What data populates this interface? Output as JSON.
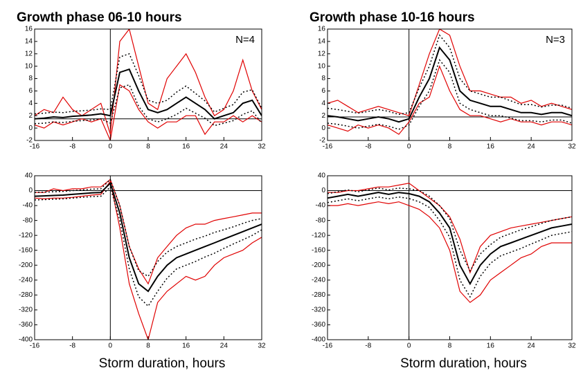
{
  "chart_data": [
    {
      "type": "line",
      "title": "Growth phase 06-10 hours",
      "annotation": "N=4",
      "x": [
        -16,
        -14,
        -12,
        -10,
        -8,
        -6,
        -4,
        -2,
        0,
        2,
        4,
        6,
        8,
        10,
        12,
        14,
        16,
        18,
        20,
        22,
        24,
        26,
        28,
        30,
        32
      ],
      "xlim": [
        -16,
        32
      ],
      "xticks": [
        -16,
        -8,
        0,
        8,
        16,
        24,
        32
      ],
      "ylim": [
        -2,
        16
      ],
      "yticks": [
        -2,
        0,
        2,
        4,
        6,
        8,
        10,
        12,
        14,
        16
      ],
      "hline": 1.5,
      "vline": 0,
      "series": [
        {
          "color": "#e00000",
          "style": "solid",
          "values": [
            2,
            3,
            2.5,
            5,
            3,
            2,
            3,
            4,
            -1,
            14,
            16,
            10,
            4,
            3,
            8,
            10,
            12,
            9,
            5,
            2,
            3,
            6,
            11,
            6,
            3
          ]
        },
        {
          "color": "#e00000",
          "style": "solid",
          "values": [
            0.5,
            0,
            1,
            0.5,
            1,
            1.5,
            1,
            1.5,
            -2,
            7,
            6,
            3,
            1,
            0,
            1,
            1,
            2,
            2,
            -1,
            1,
            1,
            2,
            1,
            2,
            1
          ]
        },
        {
          "color": "#000000",
          "style": "dotted",
          "values": [
            2.3,
            2.4,
            2.6,
            2.5,
            2.7,
            2.8,
            2.9,
            3.1,
            3.0,
            11.5,
            12.0,
            8.5,
            4.5,
            4.0,
            4.5,
            5.8,
            6.8,
            5.6,
            4.4,
            2.6,
            3.2,
            3.8,
            5.8,
            6.2,
            3.2
          ]
        },
        {
          "color": "#000000",
          "style": "dotted",
          "values": [
            0.7,
            0.8,
            1.0,
            0.9,
            1.1,
            1.2,
            1.3,
            1.5,
            0.8,
            6.5,
            7.0,
            3.5,
            1.5,
            1.0,
            1.5,
            2.2,
            3.2,
            2.4,
            1.6,
            0.4,
            0.8,
            1.2,
            2.2,
            2.8,
            0.8
          ]
        },
        {
          "color": "#000000",
          "style": "solid",
          "values": [
            1.5,
            1.6,
            1.8,
            1.7,
            1.9,
            2.0,
            2.1,
            2.3,
            2.0,
            9.0,
            9.5,
            6.0,
            3.0,
            2.5,
            3.0,
            4.0,
            5.0,
            4.0,
            3.0,
            1.5,
            2.0,
            2.5,
            4.0,
            4.5,
            2.0
          ]
        }
      ]
    },
    {
      "type": "line",
      "title": "Growth phase  10-16 hours",
      "annotation": "N=3",
      "x": [
        -16,
        -14,
        -12,
        -10,
        -8,
        -6,
        -4,
        -2,
        0,
        2,
        4,
        6,
        8,
        10,
        12,
        14,
        16,
        18,
        20,
        22,
        24,
        26,
        28,
        30,
        32
      ],
      "xlim": [
        -16,
        32
      ],
      "xticks": [
        -16,
        -8,
        0,
        8,
        16,
        24,
        32
      ],
      "ylim": [
        -2,
        16
      ],
      "yticks": [
        -2,
        0,
        2,
        4,
        6,
        8,
        10,
        12,
        14,
        16
      ],
      "hline": 1.8,
      "vline": 0,
      "series": [
        {
          "color": "#e00000",
          "style": "solid",
          "values": [
            4.0,
            4.5,
            3.5,
            2.5,
            3.0,
            3.5,
            3.0,
            2.5,
            2.0,
            7.0,
            12.0,
            16.0,
            15.0,
            10.0,
            6.0,
            6.0,
            5.5,
            5.0,
            5.0,
            4.0,
            4.5,
            3.5,
            4.0,
            3.5,
            3.0
          ]
        },
        {
          "color": "#e00000",
          "style": "solid",
          "values": [
            0.5,
            0.0,
            -0.5,
            0.5,
            0.0,
            0.5,
            0.0,
            -1.0,
            1.0,
            4.0,
            5.0,
            10.0,
            6.0,
            3.0,
            2.0,
            2.0,
            1.5,
            1.0,
            1.5,
            1.0,
            1.0,
            0.5,
            1.0,
            1.0,
            0.5
          ]
        },
        {
          "color": "#000000",
          "style": "dotted",
          "values": [
            3.2,
            3.0,
            2.7,
            2.4,
            2.7,
            3.0,
            2.7,
            2.2,
            2.5,
            6.5,
            10.0,
            15.0,
            13.0,
            8.0,
            6.0,
            5.5,
            5.0,
            5.0,
            4.4,
            3.8,
            3.8,
            3.4,
            3.7,
            3.7,
            3.2
          ]
        },
        {
          "color": "#000000",
          "style": "dotted",
          "values": [
            0.8,
            0.6,
            0.3,
            0.0,
            0.3,
            0.6,
            0.3,
            -0.2,
            0.5,
            3.5,
            6.0,
            11.0,
            9.0,
            4.0,
            3.0,
            2.5,
            2.0,
            2.0,
            1.6,
            1.2,
            1.2,
            1.0,
            1.3,
            1.3,
            0.8
          ]
        },
        {
          "color": "#000000",
          "style": "solid",
          "values": [
            2.0,
            1.8,
            1.5,
            1.2,
            1.5,
            1.8,
            1.5,
            1.0,
            1.5,
            5.0,
            8.0,
            13.0,
            11.0,
            6.0,
            4.5,
            4.0,
            3.5,
            3.5,
            3.0,
            2.5,
            2.5,
            2.2,
            2.5,
            2.5,
            2.0
          ]
        }
      ]
    },
    {
      "type": "line",
      "xlabel": "Storm duration, hours",
      "x": [
        -16,
        -14,
        -12,
        -10,
        -8,
        -6,
        -4,
        -2,
        0,
        2,
        4,
        6,
        8,
        10,
        12,
        14,
        16,
        18,
        20,
        22,
        24,
        26,
        28,
        30,
        32
      ],
      "xlim": [
        -16,
        32
      ],
      "xticks": [
        -16,
        -8,
        0,
        8,
        16,
        24,
        32
      ],
      "ylim": [
        -400,
        40
      ],
      "yticks": [
        -400,
        -360,
        -320,
        -280,
        -240,
        -200,
        -160,
        -120,
        -80,
        -40,
        0,
        40
      ],
      "hline": 0,
      "vline": 0,
      "series": [
        {
          "color": "#e00000",
          "style": "solid",
          "values": [
            -5,
            -5,
            5,
            0,
            5,
            5,
            10,
            10,
            30,
            -40,
            -150,
            -210,
            -250,
            -180,
            -150,
            -120,
            -100,
            -90,
            -90,
            -80,
            -75,
            -70,
            -65,
            -60,
            -60
          ]
        },
        {
          "color": "#e00000",
          "style": "solid",
          "values": [
            -20,
            -22,
            -20,
            -20,
            -18,
            -15,
            -12,
            -10,
            25,
            -100,
            -250,
            -330,
            -400,
            -300,
            -270,
            -250,
            -230,
            -240,
            -230,
            -200,
            -180,
            -170,
            -160,
            -140,
            -125
          ]
        },
        {
          "color": "#000000",
          "style": "dotted",
          "values": [
            -5,
            -4,
            -3,
            -2,
            0,
            2,
            4,
            5,
            30,
            -40,
            -150,
            -215,
            -230,
            -190,
            -165,
            -150,
            -140,
            -130,
            -122,
            -112,
            -105,
            -97,
            -88,
            -80,
            -75
          ]
        },
        {
          "color": "#000000",
          "style": "dotted",
          "values": [
            -25,
            -24,
            -23,
            -22,
            -20,
            -18,
            -16,
            -15,
            10,
            -80,
            -210,
            -285,
            -310,
            -270,
            -235,
            -210,
            -200,
            -190,
            -178,
            -168,
            -155,
            -143,
            -132,
            -120,
            -105
          ]
        },
        {
          "color": "#000000",
          "style": "solid",
          "values": [
            -15,
            -14,
            -13,
            -12,
            -10,
            -8,
            -6,
            -5,
            20,
            -60,
            -180,
            -250,
            -270,
            -230,
            -200,
            -180,
            -170,
            -160,
            -150,
            -140,
            -130,
            -120,
            -110,
            -100,
            -90
          ]
        }
      ]
    },
    {
      "type": "line",
      "xlabel": "Storm duration, hours",
      "x": [
        -16,
        -14,
        -12,
        -10,
        -8,
        -6,
        -4,
        -2,
        0,
        2,
        4,
        6,
        8,
        10,
        12,
        14,
        16,
        18,
        20,
        22,
        24,
        26,
        28,
        30,
        32
      ],
      "xlim": [
        -16,
        32
      ],
      "xticks": [
        -16,
        -8,
        0,
        8,
        16,
        24,
        32
      ],
      "ylim": [
        -400,
        40
      ],
      "yticks": [
        -400,
        -360,
        -320,
        -280,
        -240,
        -200,
        -160,
        -120,
        -80,
        -40,
        0,
        40
      ],
      "hline": 0,
      "vline": 0,
      "series": [
        {
          "color": "#e00000",
          "style": "solid",
          "values": [
            -5,
            -5,
            0,
            0,
            5,
            10,
            10,
            15,
            20,
            0,
            -20,
            -40,
            -70,
            -130,
            -220,
            -150,
            -120,
            -110,
            -100,
            -95,
            -90,
            -85,
            -80,
            -75,
            -70
          ]
        },
        {
          "color": "#e00000",
          "style": "solid",
          "values": [
            -40,
            -40,
            -35,
            -40,
            -35,
            -30,
            -35,
            -30,
            -40,
            -50,
            -70,
            -100,
            -160,
            -270,
            -300,
            -280,
            -240,
            -220,
            -200,
            -180,
            -170,
            -150,
            -140,
            -140,
            -140
          ]
        },
        {
          "color": "#000000",
          "style": "dotted",
          "values": [
            -8,
            -3,
            2,
            -3,
            2,
            7,
            2,
            7,
            5,
            0,
            -15,
            -40,
            -75,
            -160,
            -215,
            -170,
            -145,
            -125,
            -115,
            -105,
            -97,
            -88,
            -80,
            -75,
            -70
          ]
        },
        {
          "color": "#000000",
          "style": "dotted",
          "values": [
            -32,
            -27,
            -22,
            -27,
            -22,
            -17,
            -22,
            -17,
            -21,
            -30,
            -45,
            -80,
            -125,
            -240,
            -285,
            -230,
            -195,
            -175,
            -165,
            -155,
            -143,
            -132,
            -120,
            -115,
            -110
          ]
        },
        {
          "color": "#000000",
          "style": "solid",
          "values": [
            -20,
            -15,
            -10,
            -15,
            -10,
            -5,
            -10,
            -5,
            -8,
            -15,
            -30,
            -60,
            -100,
            -200,
            -250,
            -200,
            -170,
            -150,
            -140,
            -130,
            -120,
            -110,
            -100,
            -95,
            -90
          ]
        }
      ]
    }
  ]
}
